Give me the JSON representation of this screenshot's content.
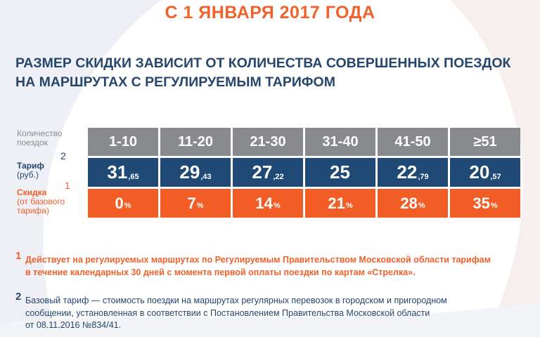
{
  "header": {
    "date_title": "С 1 ЯНВАРЯ 2017 ГОДА",
    "headline_line1": "РАЗМЕР СКИДКИ ЗАВИСИТ ОТ КОЛИЧЕСТВА СОВЕРШЕННЫХ ПОЕЗДОК",
    "headline_line2": "НА МАРШРУТАХ С РЕГУЛИРУЕМЫМ ТАРИФОМ"
  },
  "labels": {
    "count_line1": "Количество",
    "count_line2": "поездок",
    "tariff_line1": "Тариф",
    "tariff_line2": "(руб.)",
    "tariff_sup": "2",
    "discount_line1": "Скидка",
    "discount_line2": "(от базового",
    "discount_line3": "тарифа)",
    "discount_sup": "1"
  },
  "table": {
    "columns": [
      {
        "trips": "1-10",
        "tariff_main": "31",
        "tariff_frac": ",65",
        "discount": "0",
        "pct": "%"
      },
      {
        "trips": "11-20",
        "tariff_main": "29",
        "tariff_frac": ",43",
        "discount": "7",
        "pct": "%"
      },
      {
        "trips": "21-30",
        "tariff_main": "27",
        "tariff_frac": ",22",
        "discount": "14",
        "pct": "%"
      },
      {
        "trips": "31-40",
        "tariff_main": "25",
        "tariff_frac": "",
        "discount": "21",
        "pct": "%"
      },
      {
        "trips": "41-50",
        "tariff_main": "22",
        "tariff_frac": ",79",
        "discount": "28",
        "pct": "%"
      },
      {
        "trips": "≥51",
        "tariff_main": "20",
        "tariff_frac": ",57",
        "discount": "35",
        "pct": "%"
      }
    ]
  },
  "footnotes": {
    "note1_mark": "1",
    "note1_line1": "Действует на регулируемых маршрутах по Регулируемым Правительством Московской области тарифам",
    "note1_line2": "в течение календарных 30 дней с момента первой оплаты поездки по картам «Стрелка».",
    "note2_mark": "2",
    "note2_line1": "Базовый тариф — стоимость поездки на маршрутах регулярных перевозок в городском и пригородном",
    "note2_line2": "сообщении, установленная в соответствии с Постановлением Правительства Московской области",
    "note2_line3": "от 08.11.2016 №834/41."
  },
  "colors": {
    "orange": "#f25c25",
    "navy": "#1f4a76",
    "gray": "#888a8d"
  }
}
